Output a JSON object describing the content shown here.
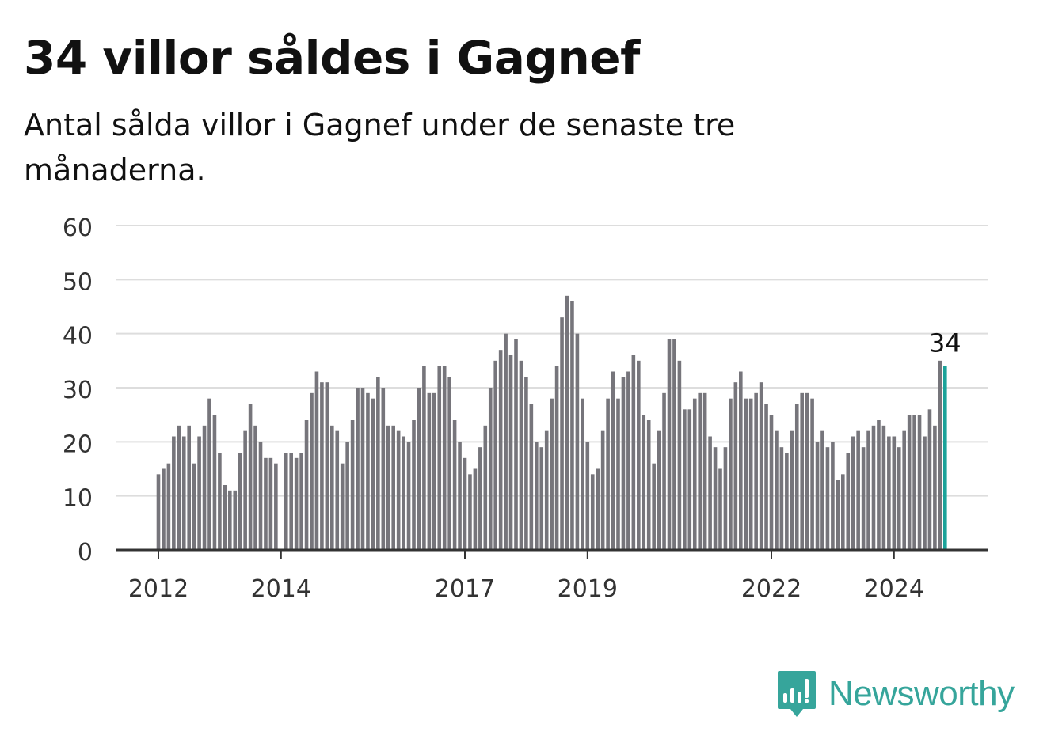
{
  "title": "34 villor såldes i Gagnef",
  "subtitle": "Antal sålda villor i Gagnef under de senaste tre månaderna.",
  "brand": {
    "name": "Newsworthy",
    "color": "#36a59b",
    "icon": "bar-chart-speech-bubble-icon"
  },
  "colors": {
    "bar": "#76757b",
    "highlight": "#1ba39a",
    "grid": "#dddddd",
    "axis": "#333333",
    "text": "#333333"
  },
  "chart_data": {
    "type": "bar",
    "title": "34 villor såldes i Gagnef",
    "subtitle": "Antal sålda villor i Gagnef under de senaste tre månaderna.",
    "xlabel": "",
    "ylabel": "",
    "ylim": [
      0,
      60
    ],
    "yticks": [
      0,
      10,
      20,
      30,
      40,
      50,
      60
    ],
    "grid": true,
    "x_tick_labels": [
      {
        "label": "2012",
        "index": 0
      },
      {
        "label": "2014",
        "index": 24
      },
      {
        "label": "2017",
        "index": 60
      },
      {
        "label": "2019",
        "index": 84
      },
      {
        "label": "2022",
        "index": 120
      },
      {
        "label": "2024",
        "index": 144
      }
    ],
    "highlight_index": 154,
    "annotation": "34",
    "values": [
      14,
      15,
      16,
      21,
      23,
      21,
      23,
      16,
      21,
      23,
      28,
      25,
      18,
      12,
      11,
      11,
      18,
      22,
      27,
      23,
      20,
      17,
      17,
      16,
      null,
      18,
      18,
      17,
      18,
      24,
      29,
      33,
      31,
      31,
      23,
      22,
      16,
      20,
      24,
      30,
      30,
      29,
      28,
      32,
      30,
      23,
      23,
      22,
      21,
      20,
      24,
      30,
      34,
      29,
      29,
      34,
      34,
      32,
      24,
      20,
      17,
      14,
      15,
      19,
      23,
      30,
      35,
      37,
      40,
      36,
      39,
      35,
      32,
      27,
      20,
      19,
      22,
      28,
      34,
      43,
      47,
      46,
      40,
      28,
      20,
      14,
      15,
      22,
      28,
      33,
      28,
      32,
      33,
      36,
      35,
      25,
      24,
      16,
      22,
      29,
      39,
      39,
      35,
      26,
      26,
      28,
      29,
      29,
      21,
      19,
      15,
      19,
      28,
      31,
      33,
      28,
      28,
      29,
      31,
      27,
      25,
      22,
      19,
      18,
      22,
      27,
      29,
      29,
      28,
      20,
      22,
      19,
      20,
      13,
      14,
      18,
      21,
      22,
      19,
      22,
      23,
      24,
      23,
      21,
      21,
      19,
      22,
      25,
      25,
      25,
      21,
      26,
      23,
      35,
      34
    ]
  }
}
